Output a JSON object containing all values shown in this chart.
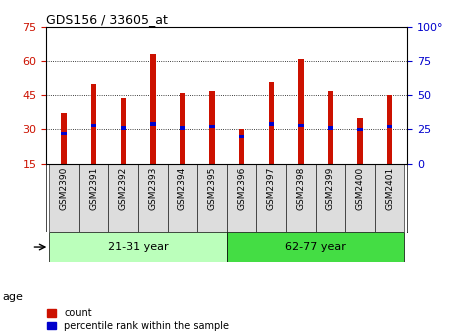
{
  "title": "GDS156 / 33605_at",
  "samples": [
    "GSM2390",
    "GSM2391",
    "GSM2392",
    "GSM2393",
    "GSM2394",
    "GSM2395",
    "GSM2396",
    "GSM2397",
    "GSM2398",
    "GSM2399",
    "GSM2400",
    "GSM2401"
  ],
  "counts": [
    37,
    50,
    44,
    63,
    46,
    47,
    30,
    51,
    61,
    47,
    35,
    45
  ],
  "percentile_values": [
    22,
    28,
    26,
    29,
    26,
    27,
    20,
    29,
    28,
    26,
    25,
    27
  ],
  "ylim_left": [
    15,
    75
  ],
  "yticks_left": [
    15,
    30,
    45,
    60,
    75
  ],
  "ylim_right": [
    0,
    100
  ],
  "yticks_right": [
    0,
    25,
    50,
    75,
    100
  ],
  "bar_color": "#cc1100",
  "percentile_color": "#0000cc",
  "group1_label": "21-31 year",
  "group2_label": "62-77 year",
  "group1_indices": [
    0,
    1,
    2,
    3,
    4,
    5
  ],
  "group2_indices": [
    6,
    7,
    8,
    9,
    10,
    11
  ],
  "group1_color": "#bbffbb",
  "group2_color": "#44dd44",
  "age_label": "age",
  "legend_count": "count",
  "legend_percentile": "percentile rank within the sample",
  "background_color": "#ffffff",
  "plot_bg_color": "#ffffff",
  "grid_color": "#000000",
  "title_color": "#000000",
  "left_tick_color": "#cc1100",
  "right_tick_color": "#0000cc",
  "tick_label_bg": "#dddddd"
}
